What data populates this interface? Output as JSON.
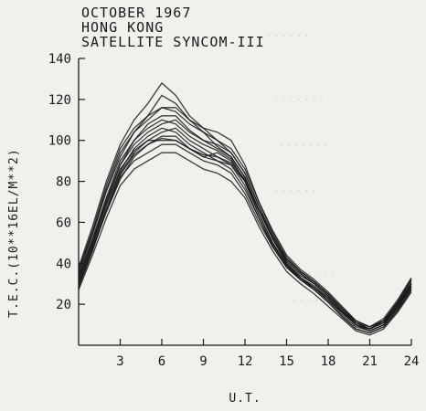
{
  "title_lines": [
    "OCTOBER   1967",
    "HONG KONG",
    "SATELLITE SYNCOM-III"
  ],
  "chart_data": {
    "type": "line",
    "title": "OCTOBER 1967 HONG KONG SATELLITE SYNCOM-III",
    "xlabel": "U.T.",
    "ylabel": "T.E.C.(10**16EL/M**2)",
    "xlim": [
      0,
      24
    ],
    "ylim": [
      0,
      140
    ],
    "x_ticks": [
      "3",
      "6",
      "9",
      "12",
      "15",
      "18",
      "21",
      "24"
    ],
    "y_ticks": [
      "20",
      "40",
      "60",
      "80",
      "100",
      "120",
      "140"
    ],
    "grid": false,
    "x": [
      0,
      1,
      2,
      3,
      4,
      5,
      6,
      7,
      8,
      9,
      10,
      11,
      12,
      13,
      14,
      15,
      16,
      17,
      18,
      19,
      20,
      21,
      22,
      23,
      24
    ],
    "series": [
      {
        "values": [
          34,
          52,
          72,
          90,
          100,
          108,
          112,
          112,
          105,
          100,
          96,
          92,
          82,
          66,
          52,
          40,
          34,
          30,
          24,
          17,
          10,
          8,
          11,
          20,
          30
        ]
      },
      {
        "values": [
          28,
          46,
          66,
          84,
          94,
          100,
          104,
          106,
          100,
          96,
          92,
          88,
          78,
          62,
          48,
          38,
          32,
          27,
          21,
          14,
          8,
          6,
          9,
          17,
          27
        ]
      },
      {
        "values": [
          38,
          58,
          80,
          98,
          110,
          118,
          128,
          122,
          112,
          106,
          100,
          94,
          84,
          68,
          54,
          42,
          36,
          31,
          25,
          18,
          11,
          9,
          13,
          22,
          33
        ]
      },
      {
        "values": [
          32,
          50,
          70,
          88,
          98,
          104,
          108,
          110,
          104,
          100,
          98,
          94,
          84,
          68,
          52,
          40,
          33,
          28,
          22,
          15,
          9,
          7,
          10,
          19,
          30
        ]
      },
      {
        "values": [
          30,
          48,
          66,
          82,
          90,
          94,
          98,
          98,
          94,
          90,
          88,
          84,
          74,
          60,
          48,
          38,
          32,
          28,
          22,
          16,
          10,
          8,
          11,
          19,
          28
        ]
      },
      {
        "values": [
          36,
          55,
          76,
          94,
          104,
          110,
          116,
          114,
          108,
          104,
          100,
          96,
          86,
          70,
          56,
          44,
          37,
          32,
          26,
          19,
          12,
          9,
          12,
          21,
          32
        ]
      },
      {
        "values": [
          27,
          44,
          62,
          78,
          86,
          90,
          94,
          94,
          90,
          86,
          84,
          80,
          72,
          58,
          46,
          36,
          30,
          25,
          19,
          13,
          7,
          5,
          8,
          16,
          26
        ]
      },
      {
        "values": [
          33,
          51,
          71,
          88,
          100,
          106,
          110,
          108,
          102,
          98,
          95,
          91,
          80,
          64,
          50,
          39,
          33,
          29,
          23,
          16,
          10,
          7,
          10,
          18,
          29
        ]
      },
      {
        "values": [
          35,
          54,
          75,
          92,
          104,
          112,
          122,
          118,
          110,
          104,
          97,
          92,
          82,
          66,
          52,
          41,
          35,
          30,
          24,
          17,
          11,
          8,
          12,
          20,
          31
        ]
      },
      {
        "values": [
          31,
          49,
          68,
          85,
          96,
          102,
          106,
          104,
          98,
          94,
          90,
          86,
          76,
          62,
          49,
          39,
          33,
          28,
          23,
          16,
          10,
          7,
          10,
          18,
          28
        ]
      },
      {
        "values": [
          29,
          47,
          65,
          81,
          92,
          98,
          102,
          102,
          96,
          92,
          94,
          90,
          80,
          64,
          50,
          39,
          32,
          27,
          21,
          14,
          8,
          6,
          9,
          17,
          27
        ]
      },
      {
        "values": [
          37,
          56,
          78,
          96,
          106,
          112,
          116,
          116,
          110,
          106,
          104,
          100,
          88,
          70,
          55,
          43,
          36,
          31,
          25,
          18,
          11,
          8,
          12,
          21,
          32
        ]
      },
      {
        "values": [
          33,
          50,
          69,
          86,
          95,
          100,
          100,
          100,
          96,
          92,
          90,
          88,
          80,
          66,
          52,
          41,
          35,
          30,
          24,
          17,
          10,
          8,
          11,
          19,
          29
        ]
      },
      {
        "values": [
          30,
          47,
          66,
          83,
          93,
          98,
          101,
          100,
          96,
          93,
          92,
          89,
          81,
          66,
          53,
          42,
          36,
          31,
          25,
          18,
          12,
          9,
          12,
          20,
          30
        ]
      }
    ]
  }
}
